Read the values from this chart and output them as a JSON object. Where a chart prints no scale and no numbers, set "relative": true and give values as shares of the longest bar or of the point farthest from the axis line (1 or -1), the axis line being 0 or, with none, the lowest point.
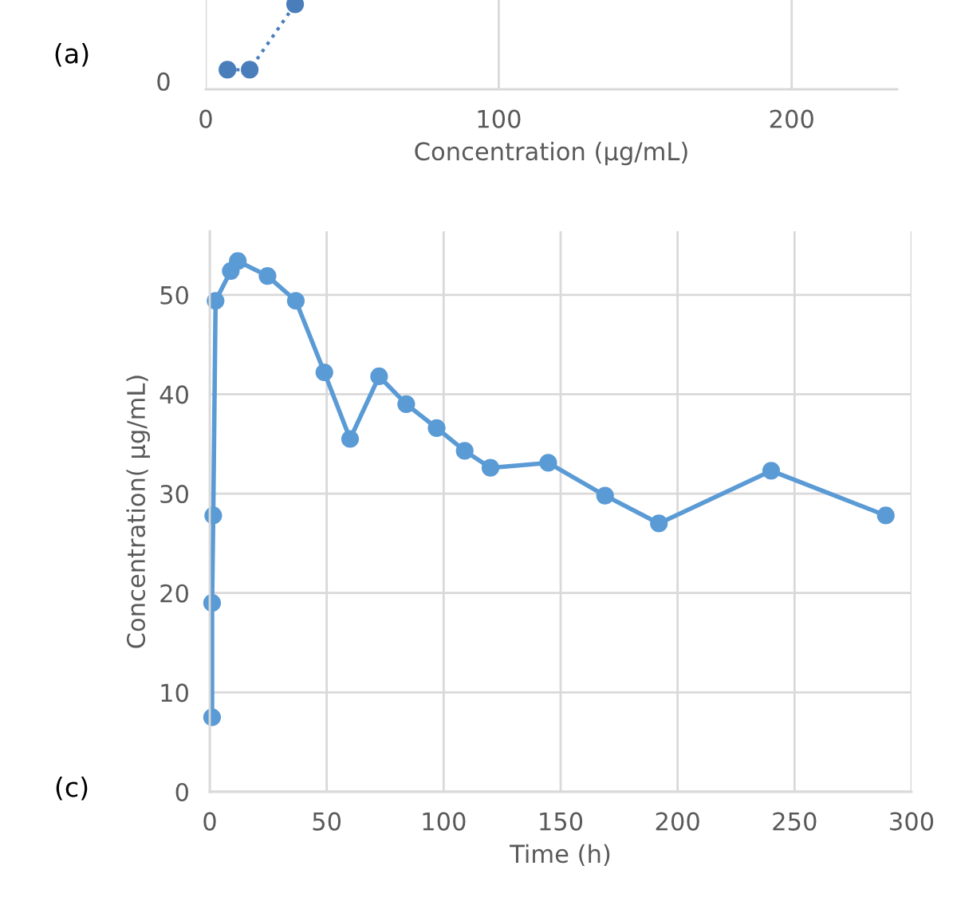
{
  "chart_data": [
    {
      "type": "line",
      "relative": true,
      "xlabel": "Concentration (µg/mL)",
      "xlim": [
        0,
        236
      ],
      "xticks": [
        0,
        100,
        200
      ],
      "grid": "x",
      "marker": "circle",
      "line_style": "dotted",
      "annotations": [
        "(a)",
        "0"
      ],
      "series": [
        {
          "color": "#4a7ebb",
          "x": [
            7.4,
            15,
            30.5
          ],
          "values": [
            0.23,
            0.23,
            1
          ]
        }
      ]
    },
    {
      "type": "line",
      "xlabel": "Time (h)",
      "ylabel": "Concentration( µg/mL)",
      "xlim": [
        0,
        300
      ],
      "xticks": [
        0,
        50,
        100,
        150,
        200,
        250,
        300
      ],
      "ylim": [
        0,
        56.4
      ],
      "yticks": [
        0,
        10,
        20,
        30,
        40,
        50
      ],
      "grid": true,
      "marker": "circle",
      "line_style": "solid",
      "annotations": [
        "(c)"
      ],
      "series": [
        {
          "color": "#5b9bd5",
          "x": [
            1,
            1,
            1.5,
            2.5,
            9,
            12,
            24.7,
            36.8,
            49,
            60,
            72.4,
            84,
            97,
            109,
            120,
            144.7,
            169,
            192,
            240,
            289
          ],
          "values": [
            7.5,
            19,
            27.8,
            49.4,
            52.4,
            53.4,
            51.9,
            49.4,
            42.2,
            35.5,
            41.8,
            39.0,
            36.6,
            34.3,
            32.6,
            33.1,
            29.8,
            27.0,
            32.3,
            27.8
          ]
        }
      ]
    }
  ]
}
